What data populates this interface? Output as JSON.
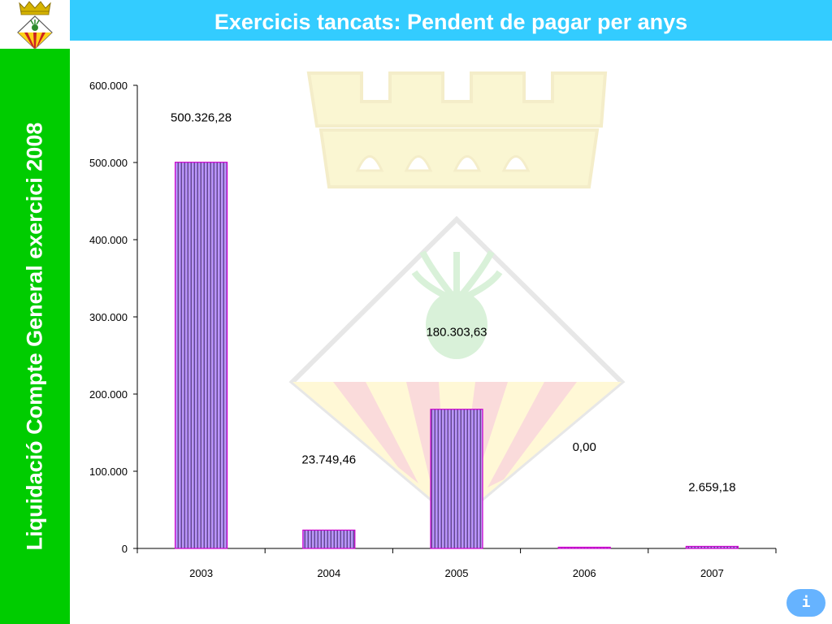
{
  "header": {
    "title": "Exercicis tancats: Pendent de pagar per anys"
  },
  "sidebar": {
    "title": "Liquidació Compte General exercici 2008"
  },
  "info_button": {
    "label": "i"
  },
  "colors": {
    "accent_green": "#00cc00",
    "header_blue": "#33ccff",
    "bar_purple": "#b38cff",
    "bar_border": "#cc00cc"
  },
  "chart_data": {
    "type": "bar",
    "categories": [
      "2003",
      "2004",
      "2005",
      "2006",
      "2007"
    ],
    "values": [
      500326.28,
      23749.46,
      180303.63,
      0.0,
      2659.18
    ],
    "data_labels": [
      "500.326,28",
      "23.749,46",
      "180.303,63",
      "0,00",
      "2.659,18"
    ],
    "yticks": [
      0,
      100000,
      200000,
      300000,
      400000,
      500000,
      600000
    ],
    "ytick_labels": [
      "0",
      "100.000",
      "200.000",
      "300.000",
      "400.000",
      "500.000",
      "600.000"
    ],
    "ylim": [
      0,
      600000
    ],
    "xlabel": "",
    "ylabel": "",
    "grid": false
  }
}
